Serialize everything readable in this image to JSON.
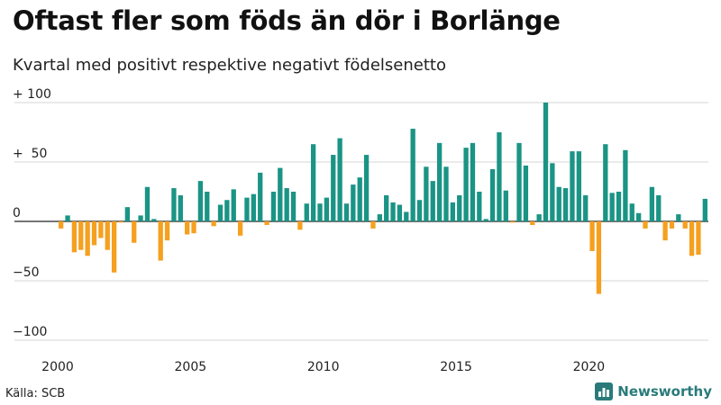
{
  "title": "Oftast fler som föds än dör i Borlänge",
  "subtitle": "Kvartal med positivt respektive negativt födelsenetto",
  "source": "Källa: SCB",
  "brand": {
    "name": "Newsworthy",
    "icon": "bar-chart-icon",
    "color": "#2a7a7a"
  },
  "chart_data": {
    "type": "bar",
    "title": "Oftast fler som föds än dör i Borlänge",
    "subtitle": "Kvartal med positivt respektive negativt födelsenetto",
    "xlabel": "",
    "ylabel": "",
    "grid": true,
    "ylim": [
      -100,
      100
    ],
    "xlim": [
      2000,
      2024.75
    ],
    "y_ticks": [
      {
        "value": 100,
        "label": "+ 100"
      },
      {
        "value": 50,
        "label": "+  50"
      },
      {
        "value": 0,
        "label": "0"
      },
      {
        "value": -50,
        "label": "−50"
      },
      {
        "value": -100,
        "label": "−100"
      }
    ],
    "x_ticks": [
      {
        "value": 2000,
        "label": "2000"
      },
      {
        "value": 2005,
        "label": "2005"
      },
      {
        "value": 2010,
        "label": "2010"
      },
      {
        "value": 2015,
        "label": "2015"
      },
      {
        "value": 2020,
        "label": "2020"
      }
    ],
    "colors": {
      "positive": "#1a9485",
      "negative": "#f5a01f"
    },
    "first_quarter": "2000 Q1",
    "values": [
      -6,
      5,
      -26,
      -24,
      -29,
      -20,
      -14,
      -24,
      -43,
      -1,
      12,
      -18,
      5,
      29,
      2,
      -33,
      -16,
      28,
      22,
      -11,
      -10,
      34,
      25,
      -4,
      14,
      18,
      27,
      -12,
      20,
      23,
      41,
      -3,
      25,
      45,
      28,
      25,
      -7,
      15,
      65,
      15,
      20,
      56,
      70,
      15,
      31,
      37,
      56,
      -6,
      6,
      22,
      16,
      14,
      8,
      78,
      18,
      46,
      34,
      66,
      46,
      16,
      22,
      62,
      66,
      25,
      2,
      44,
      75,
      26,
      -1,
      66,
      47,
      -3,
      6,
      100,
      49,
      29,
      28,
      59,
      59,
      22,
      -25,
      -61,
      65,
      24,
      25,
      60,
      15,
      7,
      -6,
      29,
      22,
      -16,
      -6,
      6,
      -6,
      -29,
      -28,
      19
    ]
  }
}
